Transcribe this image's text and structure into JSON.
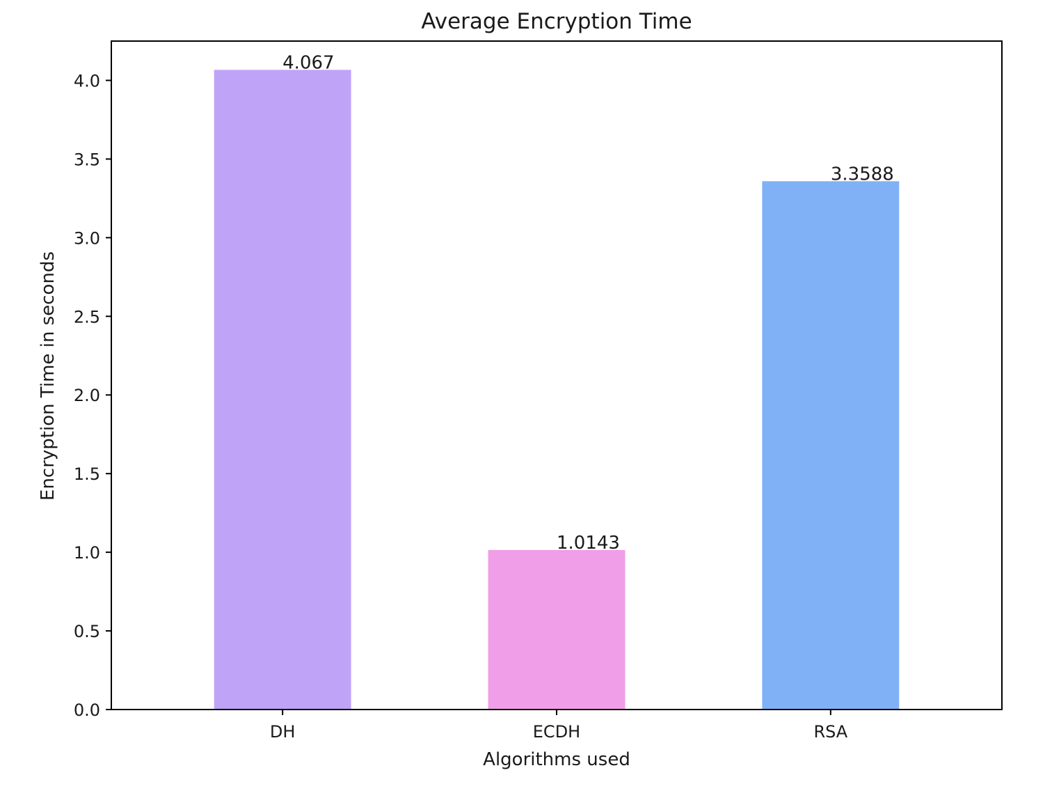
{
  "chart_data": {
    "type": "bar",
    "title": "Average Encryption Time",
    "xlabel": "Algorithms used",
    "ylabel": "Encryption Time in seconds",
    "categories": [
      "DH",
      "ECDH",
      "RSA"
    ],
    "values": [
      4.067,
      1.0143,
      3.3588
    ],
    "value_labels": [
      "4.067",
      "1.0143",
      "3.3588"
    ],
    "colors": [
      "#bfa3f7",
      "#f09ee7",
      "#80b1f7"
    ],
    "ylim": [
      0,
      4.25
    ],
    "yticks": [
      0.0,
      0.5,
      1.0,
      1.5,
      2.0,
      2.5,
      3.0,
      3.5,
      4.0
    ],
    "ytick_labels": [
      "0.0",
      "0.5",
      "1.0",
      "1.5",
      "2.0",
      "2.5",
      "3.0",
      "3.5",
      "4.0"
    ],
    "grid": false,
    "legend": "none"
  }
}
